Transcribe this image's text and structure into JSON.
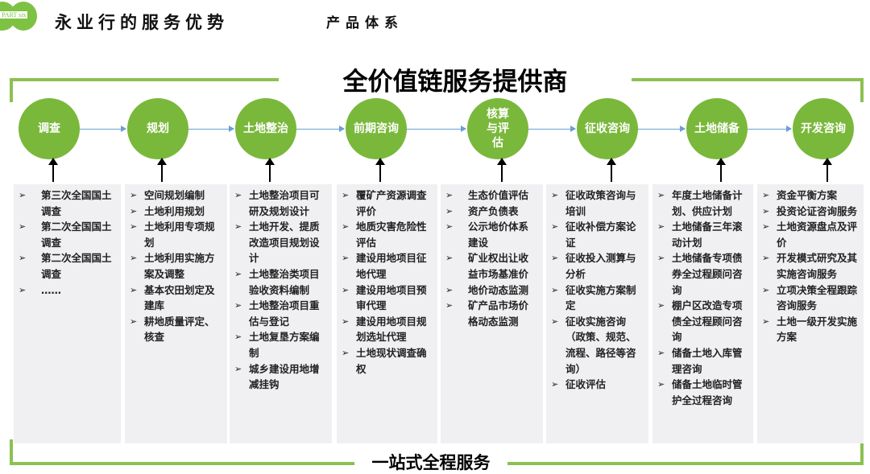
{
  "header": {
    "logo_text": "PART six",
    "title": "永业行的服务优势",
    "subtitle": "产品体系"
  },
  "main_title": "全价值链服务提供商",
  "footer_title": "一站式全程服务",
  "colors": {
    "accent_green": "#7ab83b",
    "frame_green": "#8cc152",
    "arrow_blue": "#6a9fd4",
    "box_bg": "#f0f0f2"
  },
  "stages": [
    {
      "label": "调查",
      "items": [
        "第三次全国国土调查",
        "第二次全国国土调查",
        "第二次全国国土调查",
        "……"
      ]
    },
    {
      "label": "规划",
      "items": [
        "空间规划编制",
        "土地利用规划",
        "土地利用专项规划",
        "土地利用实施方案及调整",
        "基本农田划定及建库",
        "耕地质量评定、核查"
      ]
    },
    {
      "label": "土地整治",
      "items": [
        "土地整治项目可研及规划设计",
        "土地开发、提质改造项目规划设计",
        "土地整治类项目验收资料编制",
        "土地整治项目重估与登记",
        "土地复垦方案编制",
        "城乡建设用地增减挂钩"
      ]
    },
    {
      "label": "前期咨询",
      "items": [
        "覆矿产资源调查评价",
        "地质灾害危险性评估",
        "建设用地项目征地代理",
        "建设用地项目预审代理",
        "建设用地项目规划选址代理",
        "土地现状调查确权"
      ]
    },
    {
      "label": "核算与评估",
      "items": [
        "生态价值评估",
        "资产负债表",
        "公示地价体系建设",
        "矿业权出让收益市场基准价",
        "地价动态监测",
        "矿产品市场价格动态监测"
      ]
    },
    {
      "label": "征收咨询",
      "items": [
        "征收政策咨询与培训",
        "征收补偿方案论证",
        "征收投入测算与分析",
        "征收实施方案制定",
        "征收实施咨询（政策、规范、流程、路径等咨询）",
        "征收评估"
      ]
    },
    {
      "label": "土地储备",
      "items": [
        "年度土地储备计划、供应计划",
        "土地储备三年滚动计划",
        "土地储备专项债券全过程顾问咨询",
        "棚户区改造专项债全过程顾问咨询",
        "储备土地入库管理咨询",
        "储备土地临时管护全过程咨询"
      ]
    },
    {
      "label": "开发咨询",
      "items": [
        "资金平衡方案",
        "投资论证咨询服务",
        "土地资源盘点及评价",
        "开发模式研究及其实施咨询服务",
        "立项决策全程跟踪咨询服务",
        "土地一级开发实施方案"
      ]
    }
  ]
}
